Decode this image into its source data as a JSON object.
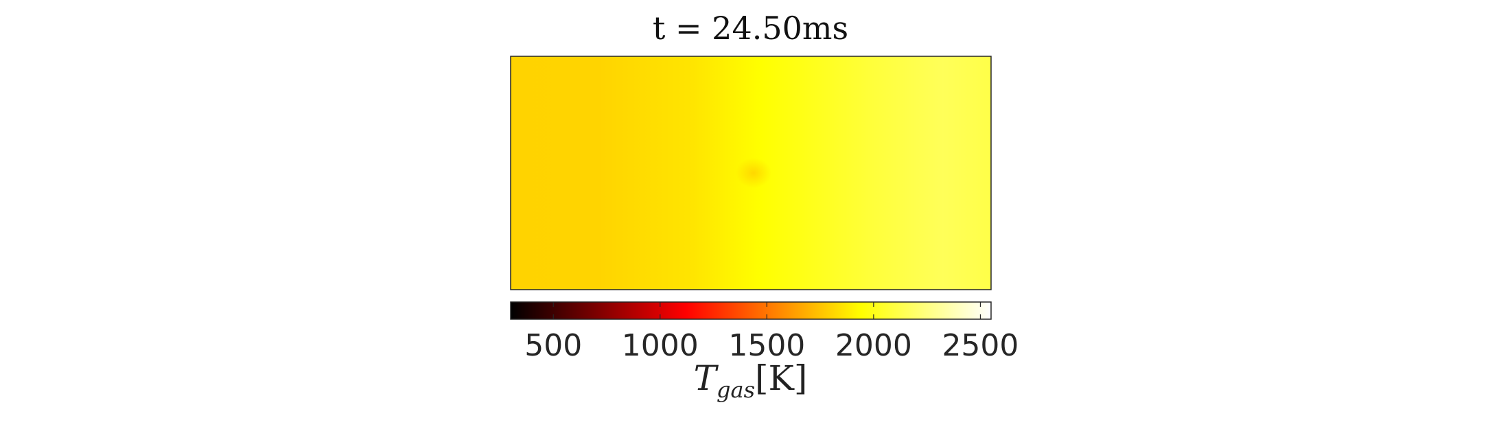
{
  "chart_data": {
    "type": "heatmap",
    "title": "t = 24.50ms",
    "colorbar": {
      "label_main": "T",
      "label_sub": "gas",
      "label_unit": "[K]",
      "min": 300,
      "max": 2550,
      "ticks": [
        500,
        1000,
        1500,
        2000,
        2500
      ],
      "colormap": "hot",
      "position": "bottom"
    },
    "field": {
      "description_values_K": {
        "left_edge": 1950,
        "mid_left": 1960,
        "center_column": 2020,
        "right_edge": 2190
      },
      "hotspot_value": 1990
    }
  }
}
